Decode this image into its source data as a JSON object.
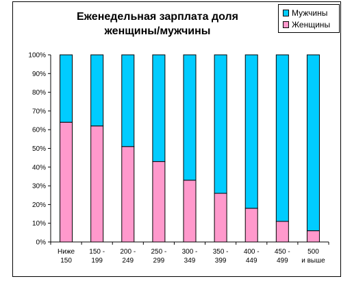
{
  "chart_data": {
    "type": "bar",
    "stacked": true,
    "percent_stacked": true,
    "title_lines": [
      "Еженедельная зарплата доля",
      "женщины/мужчины"
    ],
    "categories": [
      [
        "Ниже",
        "150"
      ],
      [
        "150 -",
        "199"
      ],
      [
        "200 -",
        "249"
      ],
      [
        "250 -",
        "299"
      ],
      [
        "300 -",
        "349"
      ],
      [
        "350 -",
        "399"
      ],
      [
        "400 -",
        "449"
      ],
      [
        "450 -",
        "499"
      ],
      [
        "500",
        "и выше"
      ]
    ],
    "series": [
      {
        "name": "Женщины",
        "color": "#ff99cc",
        "values": [
          64,
          62,
          51,
          43,
          33,
          26,
          18,
          11,
          6
        ]
      },
      {
        "name": "Мужчины",
        "color": "#00ccff",
        "values": [
          36,
          38,
          49,
          57,
          67,
          74,
          82,
          89,
          94
        ]
      }
    ],
    "ylim": [
      0,
      100
    ],
    "yticks": [
      "0%",
      "10%",
      "20%",
      "30%",
      "40%",
      "50%",
      "60%",
      "70%",
      "80%",
      "90%",
      "100%"
    ],
    "grid": false,
    "legend": {
      "position": "top-right",
      "items": [
        {
          "label": "Мужчины",
          "color": "#00ccff"
        },
        {
          "label": "Женщины",
          "color": "#ff99cc"
        }
      ]
    }
  }
}
